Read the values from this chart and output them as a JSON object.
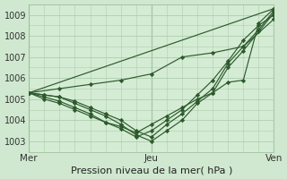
{
  "xlabel": "Pression niveau de la mer( hPa )",
  "background_color": "#cfe8cf",
  "plot_bg_color": "#d4ecd4",
  "grid_color": "#b0ccb0",
  "line_color": "#2d5a2d",
  "marker_color": "#2d5a2d",
  "xlim": [
    0,
    48
  ],
  "ylim": [
    1002.5,
    1009.5
  ],
  "yticks": [
    1003,
    1004,
    1005,
    1006,
    1007,
    1008,
    1009
  ],
  "xtick_positions": [
    0,
    24,
    48
  ],
  "xtick_labels": [
    "Mer",
    "Jeu",
    "Ven"
  ],
  "lines": [
    {
      "x": [
        0,
        3,
        6,
        9,
        12,
        15,
        18,
        21,
        24,
        27,
        30,
        33,
        36,
        39,
        42,
        45,
        48
      ],
      "y": [
        1005.3,
        1005.2,
        1005.1,
        1004.8,
        1004.5,
        1004.2,
        1003.8,
        1003.3,
        1003.0,
        1003.5,
        1004.0,
        1004.8,
        1005.3,
        1006.5,
        1007.3,
        1008.2,
        1009.1
      ]
    },
    {
      "x": [
        0,
        3,
        6,
        9,
        12,
        15,
        18,
        21,
        24,
        27,
        30,
        33,
        36,
        39,
        42,
        45,
        48
      ],
      "y": [
        1005.3,
        1005.2,
        1005.1,
        1004.9,
        1004.6,
        1004.3,
        1004.0,
        1003.5,
        1003.2,
        1003.8,
        1004.3,
        1004.9,
        1005.5,
        1006.7,
        1007.5,
        1008.3,
        1009.2
      ]
    },
    {
      "x": [
        0,
        3,
        6,
        9,
        12,
        15,
        18,
        21,
        24,
        27,
        30,
        33,
        36,
        39,
        42,
        45,
        48
      ],
      "y": [
        1005.3,
        1005.1,
        1004.9,
        1004.6,
        1004.3,
        1003.9,
        1003.6,
        1003.2,
        1003.5,
        1004.0,
        1004.5,
        1005.2,
        1005.9,
        1006.8,
        1007.8,
        1008.5,
        1009.0
      ]
    },
    {
      "x": [
        0,
        3,
        6,
        9,
        12,
        15,
        18,
        21,
        24,
        27,
        30,
        33,
        36,
        39,
        42,
        45,
        48
      ],
      "y": [
        1005.3,
        1005.0,
        1004.8,
        1004.5,
        1004.2,
        1003.9,
        1003.7,
        1003.4,
        1003.8,
        1004.2,
        1004.6,
        1005.0,
        1005.3,
        1005.8,
        1005.9,
        1008.6,
        1009.3
      ]
    },
    {
      "x": [
        0,
        6,
        12,
        18,
        24,
        30,
        36,
        42,
        48
      ],
      "y": [
        1005.3,
        1005.5,
        1005.7,
        1005.9,
        1006.2,
        1007.0,
        1007.2,
        1007.5,
        1008.8
      ]
    },
    {
      "x": [
        0,
        48
      ],
      "y": [
        1005.3,
        1009.3
      ]
    }
  ]
}
